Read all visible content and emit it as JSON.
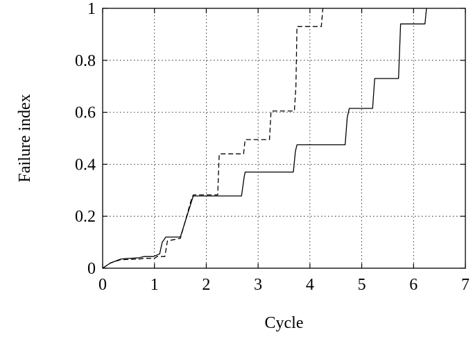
{
  "chart_data": {
    "type": "line",
    "xlabel": "Cycle",
    "ylabel": "Failure index",
    "xlim": [
      0,
      7
    ],
    "ylim": [
      0,
      1
    ],
    "xticks": [
      0,
      1,
      2,
      3,
      4,
      5,
      6,
      7
    ],
    "yticks": [
      0,
      0.2,
      0.4,
      0.6,
      0.8,
      1
    ],
    "ytick_labels": [
      "0",
      "0.2",
      "0.4",
      "0.6",
      "0.8",
      "1"
    ],
    "grid": true,
    "legend": "none",
    "series": [
      {
        "style": "solid",
        "color": "#000000",
        "x": [
          0,
          0.15,
          0.35,
          0.45,
          0.7,
          0.8,
          0.98,
          1.1,
          1.15,
          1.22,
          1.5,
          1.72,
          1.75,
          2.68,
          2.73,
          2.75,
          3.68,
          3.72,
          3.75,
          4.68,
          4.72,
          4.76,
          5.21,
          5.25,
          5.71,
          5.75,
          6.22,
          6.25
        ],
        "y": [
          0,
          0.02,
          0.035,
          0.037,
          0.04,
          0.045,
          0.045,
          0.055,
          0.1,
          0.12,
          0.12,
          0.26,
          0.278,
          0.278,
          0.35,
          0.37,
          0.37,
          0.45,
          0.475,
          0.475,
          0.58,
          0.615,
          0.615,
          0.73,
          0.73,
          0.94,
          0.94,
          1.0
        ]
      },
      {
        "style": "dashed",
        "color": "#000000",
        "x": [
          0,
          0.15,
          0.35,
          0.7,
          0.8,
          1.0,
          1.05,
          1.2,
          1.25,
          1.5,
          1.72,
          1.75,
          2.22,
          2.25,
          2.72,
          2.75,
          3.22,
          3.25,
          3.7,
          3.73,
          3.75,
          4.22,
          4.25
        ],
        "y": [
          0,
          0.02,
          0.033,
          0.035,
          0.038,
          0.038,
          0.045,
          0.045,
          0.105,
          0.115,
          0.27,
          0.282,
          0.282,
          0.44,
          0.44,
          0.495,
          0.495,
          0.605,
          0.605,
          0.7,
          0.93,
          0.93,
          1.0
        ]
      }
    ]
  }
}
